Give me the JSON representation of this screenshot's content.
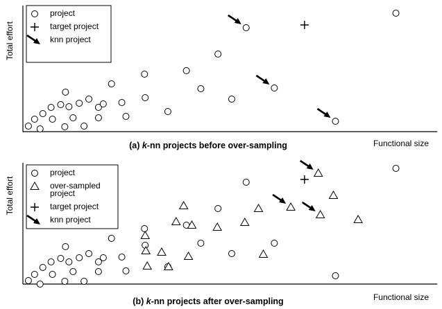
{
  "chart_data": [
    {
      "type": "scatter",
      "caption": [
        "(a) ",
        "k",
        "-nn projects before over-sampling"
      ],
      "ylabel": "Total effort",
      "xlabel": "Functional size",
      "xlim": [
        0,
        600
      ],
      "ylim": [
        0,
        182
      ],
      "series": [
        {
          "name": "project",
          "marker": "circle",
          "color": "#000000",
          "x": [
            8,
            17,
            25,
            29,
            41,
            43,
            55,
            61,
            62,
            67,
            73,
            82,
            89,
            96,
            110,
            110,
            117,
            129,
            144,
            150,
            177,
            178,
            211,
            238,
            259,
            284,
            304,
            325,
            366,
            455,
            543
          ],
          "values": [
            8,
            18,
            4,
            26,
            35,
            18,
            39,
            7,
            57,
            36,
            20,
            41,
            8,
            47,
            35,
            20,
            40,
            69,
            42,
            22,
            83,
            49,
            29,
            88,
            62,
            112,
            47,
            150,
            63,
            15,
            171
          ]
        },
        {
          "name": "target project",
          "marker": "plus",
          "color": "#000000",
          "x": [
            410
          ],
          "values": [
            154
          ]
        },
        {
          "name": "knn project",
          "marker": "arrow",
          "color": "#000000",
          "x": [
            325,
            366,
            455
          ],
          "values": [
            150,
            63,
            15
          ]
        }
      ]
    },
    {
      "type": "scatter",
      "caption": [
        "(b) ",
        "k",
        "-nn projects after over-sampling"
      ],
      "ylabel": "Total effort",
      "xlabel": "Functional size",
      "xlim": [
        0,
        600
      ],
      "ylim": [
        0,
        175
      ],
      "series": [
        {
          "name": "project",
          "marker": "circle",
          "color": "#000000",
          "x": [
            8,
            17,
            25,
            29,
            41,
            43,
            55,
            61,
            62,
            67,
            73,
            82,
            89,
            96,
            110,
            110,
            117,
            129,
            144,
            150,
            177,
            178,
            211,
            238,
            259,
            284,
            304,
            325,
            366,
            455,
            543
          ],
          "values": [
            5,
            14,
            0,
            24,
            32,
            14,
            37,
            4,
            54,
            32,
            18,
            38,
            4,
            44,
            32,
            18,
            38,
            66,
            39,
            19,
            80,
            56,
            25,
            85,
            59,
            109,
            44,
            147,
            59,
            12,
            167
          ]
        },
        {
          "name": "over-sampled project",
          "marker": "triangle",
          "color": "#000000",
          "x": [
            178,
            179,
            181,
            202,
            212,
            223,
            234,
            241,
            246,
            283,
            323,
            343,
            350,
            390,
            430,
            433,
            452,
            488
          ],
          "values": [
            70,
            48,
            26,
            46,
            25,
            90,
            113,
            40,
            85,
            82,
            89,
            109,
            43,
            111,
            160,
            100,
            128,
            93
          ]
        },
        {
          "name": "target project",
          "marker": "plus",
          "color": "#000000",
          "x": [
            410
          ],
          "values": [
            151
          ]
        },
        {
          "name": "knn project",
          "marker": "arrow",
          "color": "#000000",
          "x": [
            390,
            430,
            433
          ],
          "values": [
            111,
            160,
            100
          ]
        }
      ]
    }
  ]
}
